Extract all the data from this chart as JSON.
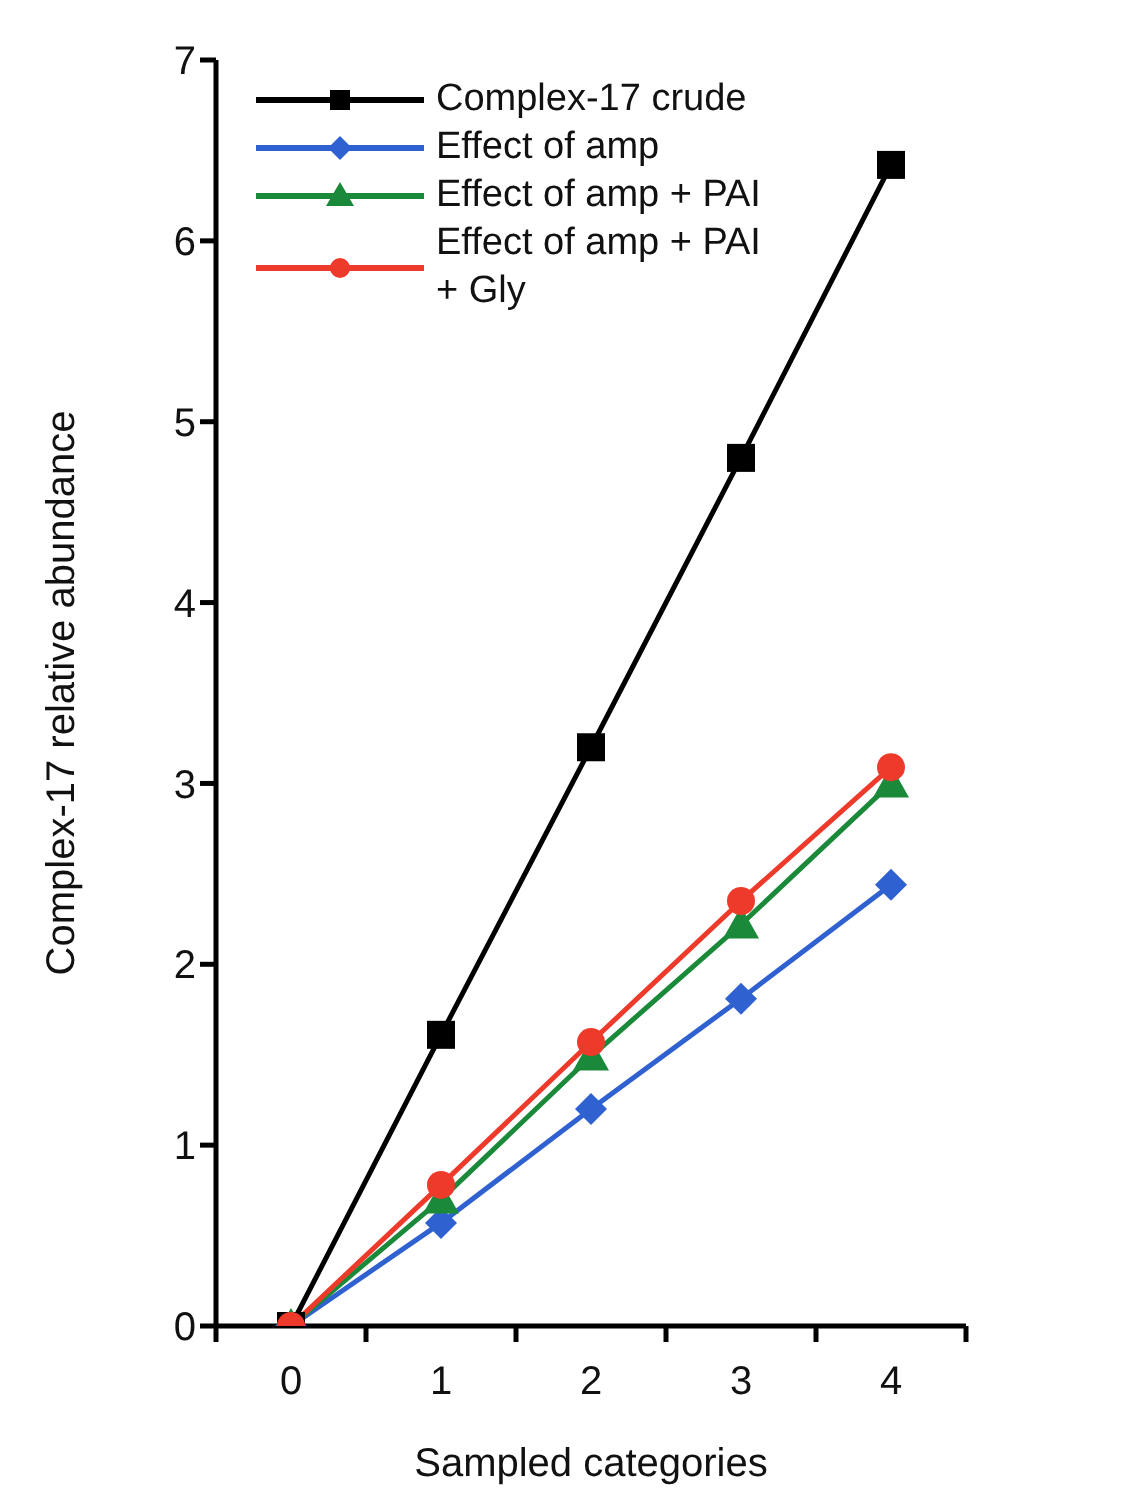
{
  "chart_data": {
    "type": "line",
    "xlabel": "Sampled categories",
    "ylabel": "Complex-17 relative abundance",
    "categories": [
      "0",
      "1",
      "2",
      "3",
      "4"
    ],
    "ylim": [
      0,
      7
    ],
    "yticks": [
      0,
      1,
      2,
      3,
      4,
      5,
      6,
      7
    ],
    "grid": false,
    "legend": "top left",
    "line_style": "solid",
    "series": [
      {
        "name": "Complex-17 crude",
        "color": "#000000",
        "marker": "square",
        "values": [
          0,
          1.61,
          3.2,
          4.8,
          6.42
        ]
      },
      {
        "name": "Effect of amp",
        "color": "#2f62d0",
        "marker": "diamond",
        "values": [
          0,
          0.57,
          1.2,
          1.81,
          2.44
        ]
      },
      {
        "name": "Effect of amp  + PAI",
        "color": "#1a8a3a",
        "marker": "triangle",
        "values": [
          0,
          0.7,
          1.49,
          2.22,
          3.0
        ]
      },
      {
        "name": "Effect of amp + PAI + Gly",
        "color": "#ee3a2a",
        "marker": "circle",
        "values": [
          0,
          0.78,
          1.57,
          2.35,
          3.09
        ]
      }
    ]
  }
}
